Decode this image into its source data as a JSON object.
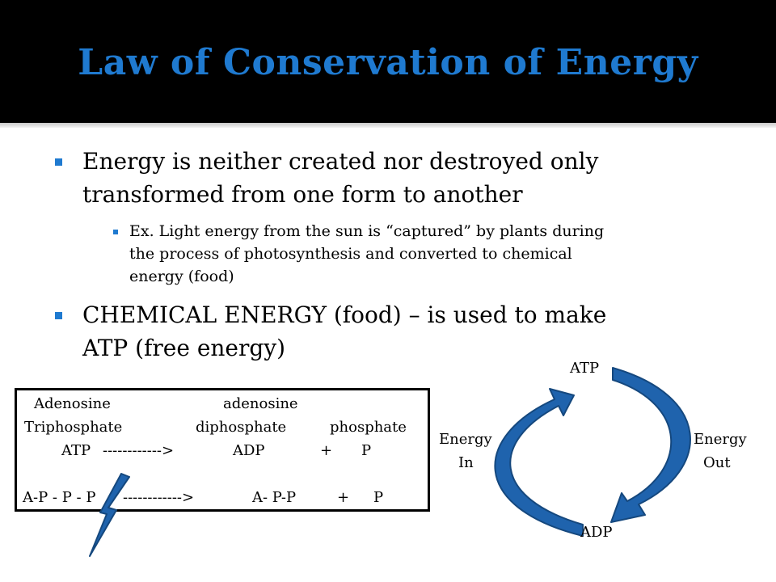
{
  "title": "Law of Conservation of Energy",
  "bullets": {
    "b1_line1": "Energy is neither created nor destroyed only",
    "b1_line2": "transformed from one form to another",
    "sub_line1": "Ex. Light energy from the sun is “captured” by plants during",
    "sub_line2": "the process of photosynthesis and converted to chemical",
    "sub_line3": "energy (food)",
    "b2_line1": "CHEMICAL ENERGY (food) – is used to make",
    "b2_line2": "ATP (free energy)"
  },
  "equation": {
    "adenosine1": "Adenosine",
    "adenosine2": "adenosine",
    "triphosphate": "Triphosphate",
    "diphosphate": "diphosphate",
    "phosphate": "phosphate",
    "atp": "ATP",
    "arrow1": "------------>",
    "adp": "ADP",
    "plus1": "+",
    "p1": "P",
    "app": "A-P - P - P",
    "arrow2": "------------>",
    "apdash": "A- P-P",
    "plus2": "+",
    "p2": "P"
  },
  "cycle": {
    "atp": "ATP",
    "adp": "ADP",
    "energy_in_1": "Energy",
    "energy_in_2": "In",
    "energy_out_1": "Energy",
    "energy_out_2": "Out"
  },
  "colors": {
    "header_bg": "#000000",
    "title": "#1f7ad0",
    "arrow_fill": "#1f63ad",
    "arrow_stroke": "#15487e"
  },
  "icons": {
    "bullet": "square-bullet",
    "bolt": "lightning-bolt-icon",
    "cycle": "curved-arrow-icon"
  }
}
